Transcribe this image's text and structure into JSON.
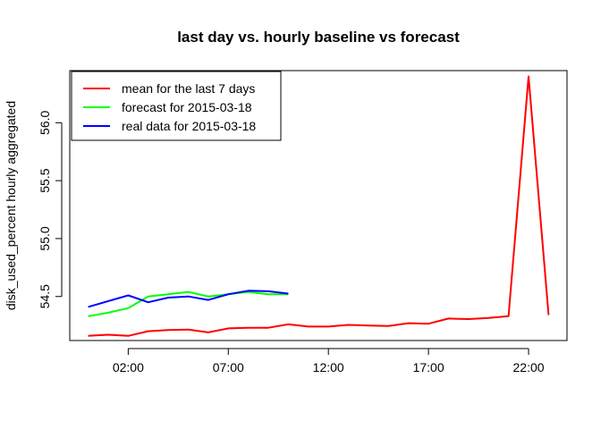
{
  "chart_data": {
    "type": "line",
    "title": "last day vs. hourly baseline vs forecast",
    "xlabel": "",
    "ylabel": "disk_used_percent hourly aggregated",
    "x": [
      0,
      1,
      2,
      3,
      4,
      5,
      6,
      7,
      8,
      9,
      10,
      11,
      12,
      13,
      14,
      15,
      16,
      17,
      18,
      19,
      20,
      21,
      22,
      23
    ],
    "xticks": [
      {
        "value": 2,
        "label": "02:00"
      },
      {
        "value": 7,
        "label": "07:00"
      },
      {
        "value": 12,
        "label": "12:00"
      },
      {
        "value": 17,
        "label": "17:00"
      },
      {
        "value": 22,
        "label": "22:00"
      }
    ],
    "yticks": [
      {
        "value": 54.5,
        "label": "54.5"
      },
      {
        "value": 55.0,
        "label": "55.0"
      },
      {
        "value": 55.5,
        "label": "55.5"
      },
      {
        "value": 56.0,
        "label": "56.0"
      }
    ],
    "xlim": [
      -0.92,
      23.92
    ],
    "ylim": [
      54.12,
      56.45
    ],
    "series": [
      {
        "name": "mean for the last 7 days",
        "color": "#ff0000",
        "x": [
          0,
          1,
          2,
          3,
          4,
          5,
          6,
          7,
          8,
          9,
          10,
          11,
          12,
          13,
          14,
          15,
          16,
          17,
          18,
          19,
          20,
          21,
          22,
          23
        ],
        "values": [
          54.16,
          54.17,
          54.16,
          54.2,
          54.21,
          54.215,
          54.19,
          54.225,
          54.23,
          54.23,
          54.26,
          54.24,
          54.24,
          54.255,
          54.25,
          54.245,
          54.27,
          54.265,
          54.31,
          54.305,
          54.315,
          54.33,
          56.4,
          54.34
        ]
      },
      {
        "name": "forecast for 2015-03-18",
        "color": "#00ff00",
        "x": [
          0,
          1,
          2,
          3,
          4,
          5,
          6,
          7,
          8,
          9,
          10
        ],
        "values": [
          54.33,
          54.36,
          54.4,
          54.5,
          54.52,
          54.54,
          54.5,
          54.52,
          54.54,
          54.52,
          54.52
        ]
      },
      {
        "name": "real data for 2015-03-18",
        "color": "#0000ff",
        "x": [
          0,
          1,
          2,
          3,
          4,
          5,
          6,
          7,
          8,
          9,
          10
        ],
        "values": [
          54.41,
          54.46,
          54.51,
          54.45,
          54.49,
          54.5,
          54.47,
          54.52,
          54.55,
          54.545,
          54.525
        ]
      }
    ],
    "legend_position": "top-left",
    "grid": false
  }
}
